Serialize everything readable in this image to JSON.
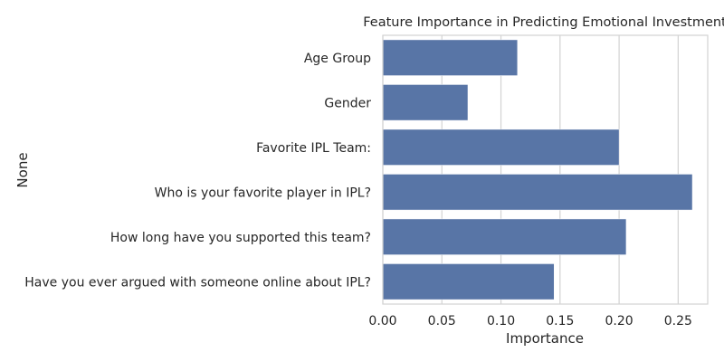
{
  "chart_data": {
    "type": "bar",
    "orientation": "horizontal",
    "title": "Feature Importance in Predicting Emotional Investment",
    "xlabel": "Importance",
    "ylabel": "None",
    "categories": [
      "Age Group",
      "Gender",
      "Favorite IPL Team:",
      "Who is your favorite player in IPL?",
      "How long have you supported this team?",
      "Have you ever argued with someone online about IPL?"
    ],
    "values": [
      0.114,
      0.072,
      0.2,
      0.262,
      0.206,
      0.145
    ],
    "xlim": [
      0,
      0.275
    ],
    "xticks": [
      0.0,
      0.05,
      0.1,
      0.15,
      0.2,
      0.25
    ],
    "xtick_labels": [
      "0.00",
      "0.05",
      "0.10",
      "0.15",
      "0.20",
      "0.25"
    ],
    "grid": true,
    "bar_color": "#5875a6",
    "grid_color": "#d3d3d3",
    "text_color": "#262626"
  }
}
